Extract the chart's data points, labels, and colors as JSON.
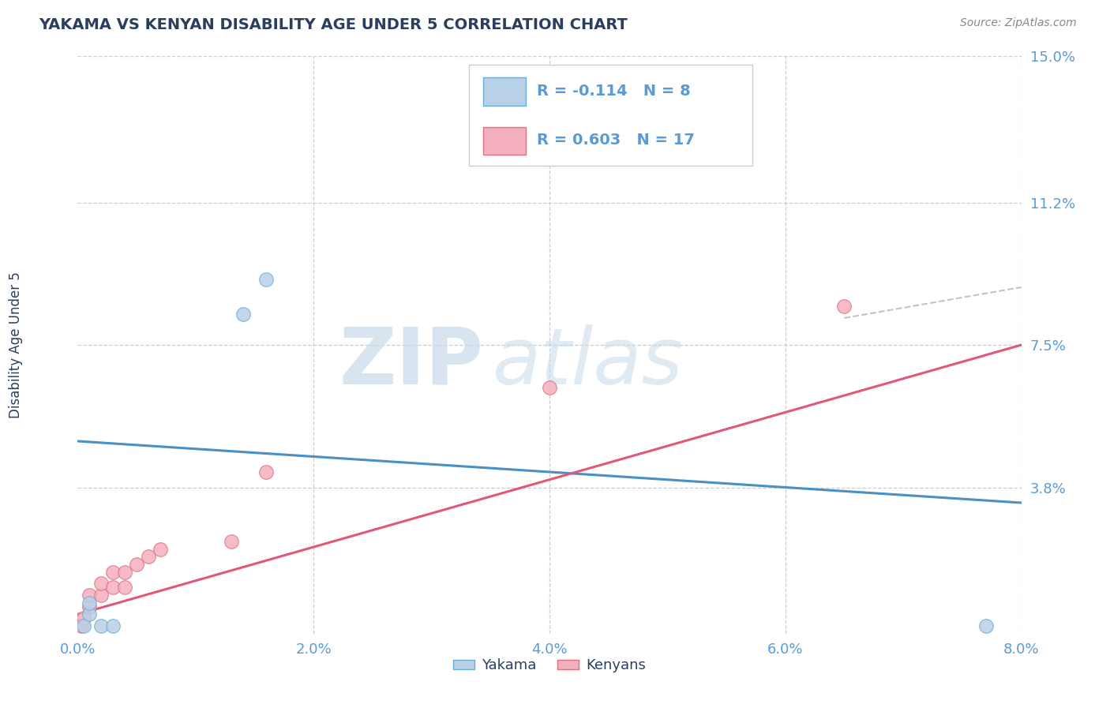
{
  "title": "YAKAMA VS KENYAN DISABILITY AGE UNDER 5 CORRELATION CHART",
  "source": "Source: ZipAtlas.com",
  "ylabel": "Disability Age Under 5",
  "xlim": [
    0.0,
    0.08
  ],
  "ylim": [
    0.0,
    0.15
  ],
  "yticks": [
    0.038,
    0.075,
    0.112,
    0.15
  ],
  "ytick_labels": [
    "3.8%",
    "7.5%",
    "11.2%",
    "15.0%"
  ],
  "xticks": [
    0.0,
    0.02,
    0.04,
    0.06,
    0.08
  ],
  "xtick_labels": [
    "0.0%",
    "2.0%",
    "4.0%",
    "6.0%",
    "8.0%"
  ],
  "background_color": "#ffffff",
  "plot_bg_color": "#ffffff",
  "grid_color": "#c8c8d0",
  "yakama_fill_color": "#b8d0e8",
  "yakama_edge_color": "#6baed6",
  "kenyan_fill_color": "#f4b0bc",
  "kenyan_edge_color": "#e07080",
  "yakama_line_color": "#4a90c4",
  "kenyan_line_color": "#e05878",
  "title_color": "#2a3f5f",
  "tick_color": "#5b9bd5",
  "label_color": "#2a3f5f",
  "legend_color": "#5b9bd5",
  "yakama_R": -0.114,
  "yakama_N": 8,
  "kenyan_R": 0.603,
  "kenyan_N": 17,
  "yakama_scatter_x": [
    0.0005,
    0.001,
    0.001,
    0.002,
    0.003,
    0.014,
    0.016,
    0.077
  ],
  "yakama_scatter_y": [
    0.002,
    0.005,
    0.008,
    0.002,
    0.002,
    0.083,
    0.092,
    0.002
  ],
  "kenyan_scatter_x": [
    0.0003,
    0.0005,
    0.001,
    0.001,
    0.002,
    0.002,
    0.003,
    0.003,
    0.004,
    0.004,
    0.005,
    0.006,
    0.007,
    0.013,
    0.016,
    0.04,
    0.065
  ],
  "kenyan_scatter_y": [
    0.002,
    0.004,
    0.007,
    0.01,
    0.01,
    0.013,
    0.012,
    0.016,
    0.012,
    0.016,
    0.018,
    0.02,
    0.022,
    0.024,
    0.042,
    0.064,
    0.085
  ],
  "yakama_line_x0": 0.0,
  "yakama_line_y0": 0.05,
  "yakama_line_x1": 0.08,
  "yakama_line_y1": 0.034,
  "kenyan_line_x0": 0.0,
  "kenyan_line_y0": 0.005,
  "kenyan_line_x1": 0.08,
  "kenyan_line_y1": 0.075
}
